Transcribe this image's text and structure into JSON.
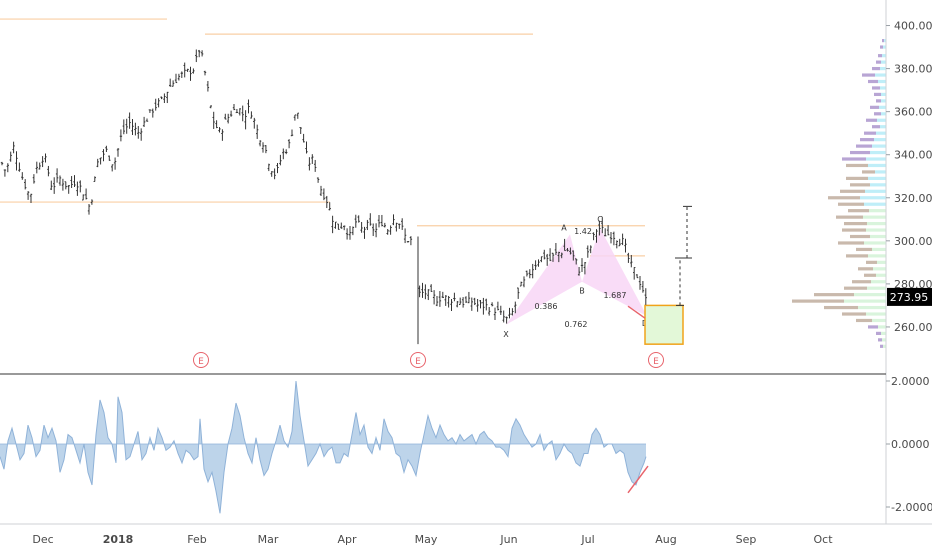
{
  "chart_data": {
    "type": "ohlc",
    "price_axis": {
      "min": 240,
      "max": 410,
      "ticks": [
        400,
        380,
        360,
        340,
        320,
        300,
        280,
        260
      ],
      "tick_labels": [
        "400.00",
        "380.00",
        "360.00",
        "340.00",
        "320.00",
        "300.00",
        "280.00",
        "260.00"
      ]
    },
    "last_price": {
      "value": 273.95,
      "label": "273.95",
      "color": "#000000"
    },
    "time_axis": {
      "labels": [
        "Dec",
        "2018",
        "Feb",
        "Mar",
        "Apr",
        "May",
        "Jun",
        "Jul",
        "Aug",
        "Sep",
        "Oct"
      ],
      "bold": [
        "2018"
      ]
    },
    "price_path": [
      [
        0,
        338
      ],
      [
        6,
        332
      ],
      [
        14,
        344
      ],
      [
        22,
        330
      ],
      [
        30,
        320
      ],
      [
        36,
        333
      ],
      [
        44,
        340
      ],
      [
        52,
        325
      ],
      [
        60,
        329
      ],
      [
        68,
        325
      ],
      [
        76,
        328
      ],
      [
        84,
        322
      ],
      [
        90,
        315
      ],
      [
        98,
        337
      ],
      [
        106,
        342
      ],
      [
        114,
        335
      ],
      [
        122,
        350
      ],
      [
        130,
        355
      ],
      [
        138,
        350
      ],
      [
        146,
        356
      ],
      [
        154,
        362
      ],
      [
        162,
        365
      ],
      [
        170,
        372
      ],
      [
        178,
        376
      ],
      [
        186,
        378
      ],
      [
        194,
        380
      ],
      [
        200,
        390
      ],
      [
        205,
        378
      ],
      [
        210,
        364
      ],
      [
        214,
        355
      ],
      [
        220,
        350
      ],
      [
        226,
        356
      ],
      [
        232,
        360
      ],
      [
        238,
        362
      ],
      [
        244,
        358
      ],
      [
        250,
        362
      ],
      [
        258,
        350
      ],
      [
        264,
        345
      ],
      [
        270,
        335
      ],
      [
        276,
        330
      ],
      [
        282,
        340
      ],
      [
        290,
        345
      ],
      [
        296,
        362
      ],
      [
        302,
        350
      ],
      [
        308,
        336
      ],
      [
        314,
        338
      ],
      [
        320,
        325
      ],
      [
        326,
        320
      ],
      [
        332,
        311
      ],
      [
        338,
        306
      ],
      [
        344,
        308
      ],
      [
        350,
        302
      ],
      [
        356,
        309
      ],
      [
        362,
        305
      ],
      [
        368,
        307
      ],
      [
        376,
        305
      ],
      [
        382,
        309
      ],
      [
        388,
        305
      ],
      [
        394,
        311
      ],
      [
        400,
        308
      ],
      [
        406,
        301
      ],
      [
        412,
        300
      ],
      [
        418,
        275
      ],
      [
        424,
        276
      ],
      [
        430,
        275
      ],
      [
        436,
        273
      ],
      [
        442,
        274
      ],
      [
        448,
        273
      ],
      [
        454,
        273
      ],
      [
        460,
        272
      ],
      [
        466,
        271
      ],
      [
        472,
        272
      ],
      [
        478,
        270
      ],
      [
        484,
        270
      ],
      [
        490,
        269
      ],
      [
        496,
        268
      ],
      [
        502,
        265
      ],
      [
        508,
        263
      ],
      [
        514,
        268
      ],
      [
        520,
        278
      ],
      [
        526,
        282
      ],
      [
        532,
        287
      ],
      [
        538,
        291
      ],
      [
        544,
        293
      ],
      [
        550,
        291
      ],
      [
        556,
        294
      ],
      [
        562,
        295
      ],
      [
        568,
        296
      ],
      [
        574,
        292
      ],
      [
        580,
        286
      ],
      [
        586,
        291
      ],
      [
        592,
        299
      ],
      [
        596,
        305
      ],
      [
        600,
        306
      ],
      [
        606,
        303
      ],
      [
        612,
        303
      ],
      [
        618,
        301
      ],
      [
        624,
        299
      ],
      [
        630,
        289
      ],
      [
        636,
        285
      ],
      [
        642,
        279
      ],
      [
        646,
        272
      ]
    ],
    "indicator": {
      "axis": {
        "min": -2.8,
        "max": 2.2,
        "ticks": [
          2,
          0,
          -2
        ],
        "tick_labels": [
          "2.0000",
          "0.0000",
          "-2.0000"
        ]
      },
      "values": [
        [
          0,
          -0.4
        ],
        [
          4,
          -0.8
        ],
        [
          8,
          0.1
        ],
        [
          12,
          0.5
        ],
        [
          16,
          0.0
        ],
        [
          20,
          -0.5
        ],
        [
          24,
          -0.3
        ],
        [
          28,
          0.6
        ],
        [
          32,
          0.2
        ],
        [
          36,
          -0.4
        ],
        [
          40,
          -0.2
        ],
        [
          44,
          0.6
        ],
        [
          48,
          0.2
        ],
        [
          52,
          0.5
        ],
        [
          56,
          0.1
        ],
        [
          60,
          -0.9
        ],
        [
          64,
          -0.5
        ],
        [
          68,
          0.3
        ],
        [
          72,
          0.2
        ],
        [
          76,
          -0.2
        ],
        [
          80,
          -0.6
        ],
        [
          84,
          0.0
        ],
        [
          88,
          -0.9
        ],
        [
          92,
          -1.3
        ],
        [
          96,
          0.3
        ],
        [
          100,
          1.4
        ],
        [
          104,
          1.0
        ],
        [
          108,
          0.2
        ],
        [
          112,
          0.0
        ],
        [
          116,
          -0.6
        ],
        [
          118,
          1.5
        ],
        [
          122,
          1.0
        ],
        [
          126,
          -0.5
        ],
        [
          130,
          -0.4
        ],
        [
          134,
          0.0
        ],
        [
          138,
          0.4
        ],
        [
          142,
          -0.5
        ],
        [
          146,
          -0.3
        ],
        [
          150,
          0.2
        ],
        [
          154,
          -0.2
        ],
        [
          158,
          0.5
        ],
        [
          162,
          0.2
        ],
        [
          166,
          -0.2
        ],
        [
          170,
          -0.1
        ],
        [
          174,
          0.1
        ],
        [
          178,
          -0.3
        ],
        [
          182,
          -0.6
        ],
        [
          186,
          -0.2
        ],
        [
          190,
          -0.3
        ],
        [
          194,
          -0.5
        ],
        [
          198,
          -0.4
        ],
        [
          200,
          0.8
        ],
        [
          204,
          -0.8
        ],
        [
          208,
          -1.2
        ],
        [
          212,
          -0.9
        ],
        [
          216,
          -1.5
        ],
        [
          220,
          -2.2
        ],
        [
          224,
          -0.9
        ],
        [
          228,
          0.0
        ],
        [
          232,
          0.5
        ],
        [
          236,
          1.3
        ],
        [
          240,
          0.9
        ],
        [
          244,
          0.2
        ],
        [
          248,
          -0.3
        ],
        [
          252,
          -0.6
        ],
        [
          256,
          0.2
        ],
        [
          260,
          -0.5
        ],
        [
          264,
          -1.0
        ],
        [
          268,
          -0.8
        ],
        [
          272,
          -0.3
        ],
        [
          276,
          0.1
        ],
        [
          280,
          0.6
        ],
        [
          284,
          0.1
        ],
        [
          288,
          -0.1
        ],
        [
          292,
          0.4
        ],
        [
          296,
          2.0
        ],
        [
          300,
          0.9
        ],
        [
          304,
          0.1
        ],
        [
          308,
          -0.7
        ],
        [
          312,
          -0.5
        ],
        [
          316,
          -0.3
        ],
        [
          320,
          0.0
        ],
        [
          324,
          -0.4
        ],
        [
          328,
          -0.2
        ],
        [
          332,
          -0.1
        ],
        [
          336,
          -0.6
        ],
        [
          340,
          -0.6
        ],
        [
          344,
          -0.3
        ],
        [
          348,
          -0.4
        ],
        [
          352,
          0.3
        ],
        [
          356,
          1.0
        ],
        [
          360,
          0.3
        ],
        [
          364,
          0.6
        ],
        [
          368,
          -0.1
        ],
        [
          372,
          -0.3
        ],
        [
          376,
          0.2
        ],
        [
          380,
          -0.2
        ],
        [
          384,
          0.8
        ],
        [
          388,
          0.4
        ],
        [
          392,
          0.2
        ],
        [
          396,
          -0.3
        ],
        [
          400,
          -0.4
        ],
        [
          404,
          -0.9
        ],
        [
          408,
          -0.5
        ],
        [
          412,
          -0.7
        ],
        [
          416,
          -1.0
        ],
        [
          420,
          -0.3
        ],
        [
          424,
          0.3
        ],
        [
          428,
          0.9
        ],
        [
          432,
          0.5
        ],
        [
          436,
          0.2
        ],
        [
          440,
          0.6
        ],
        [
          444,
          0.3
        ],
        [
          448,
          0.1
        ],
        [
          452,
          0.2
        ],
        [
          456,
          0.0
        ],
        [
          460,
          0.3
        ],
        [
          464,
          0.1
        ],
        [
          468,
          0.2
        ],
        [
          472,
          0.3
        ],
        [
          476,
          0.0
        ],
        [
          480,
          0.3
        ],
        [
          484,
          0.4
        ],
        [
          488,
          0.2
        ],
        [
          492,
          0.1
        ],
        [
          496,
          -0.1
        ],
        [
          500,
          -0.1
        ],
        [
          504,
          -0.2
        ],
        [
          508,
          -0.4
        ],
        [
          512,
          0.5
        ],
        [
          516,
          0.8
        ],
        [
          520,
          0.6
        ],
        [
          524,
          0.3
        ],
        [
          528,
          0.1
        ],
        [
          532,
          -0.1
        ],
        [
          536,
          0.0
        ],
        [
          540,
          0.3
        ],
        [
          544,
          -0.2
        ],
        [
          548,
          0.0
        ],
        [
          552,
          0.1
        ],
        [
          556,
          -0.5
        ],
        [
          560,
          -0.3
        ],
        [
          564,
          0.0
        ],
        [
          568,
          -0.2
        ],
        [
          572,
          -0.3
        ],
        [
          576,
          -0.6
        ],
        [
          580,
          -0.7
        ],
        [
          584,
          -0.3
        ],
        [
          588,
          -0.3
        ],
        [
          592,
          0.3
        ],
        [
          596,
          0.5
        ],
        [
          600,
          0.3
        ],
        [
          604,
          -0.1
        ],
        [
          608,
          0.0
        ],
        [
          612,
          0.0
        ],
        [
          616,
          -0.3
        ],
        [
          620,
          -0.2
        ],
        [
          624,
          -0.3
        ],
        [
          628,
          -0.9
        ],
        [
          632,
          -1.2
        ],
        [
          636,
          -1.3
        ],
        [
          640,
          -0.9
        ],
        [
          644,
          -0.6
        ],
        [
          646,
          -0.4
        ]
      ]
    },
    "harmonic_pattern": {
      "points": {
        "X": 261,
        "A": 303,
        "B": 281,
        "C": 306,
        "D": 265
      },
      "ratios": [
        "1.42",
        "0.386",
        "1.687",
        "0.762"
      ],
      "labels": [
        "X",
        "A",
        "B",
        "C",
        "D"
      ]
    },
    "earnings_markers": [
      "E",
      "E",
      "E"
    ],
    "projection": {
      "levels": [
        270,
        292,
        316
      ]
    },
    "colors": {
      "bar": "#333333",
      "indicator_fill": "#bdd4ea",
      "indicator_line": "#8fb2d8",
      "pattern_fill": "#f8d6f6",
      "target_fill": "#e3f8d8",
      "target_border": "#f0a31a",
      "earnings": "#e8646c",
      "level_line": "#f9cfa5",
      "divergence": "#e8646c"
    }
  }
}
